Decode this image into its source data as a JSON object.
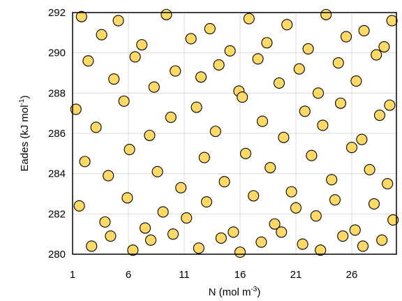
{
  "chart_data": {
    "type": "scatter",
    "title": "",
    "xlabel": {
      "base": "N (mol m",
      "sup": "-3",
      "end": ")"
    },
    "ylabel": {
      "base": "Eades (kJ mol",
      "sup": "-1",
      "end": ")"
    },
    "xlim": [
      1,
      30
    ],
    "ylim": [
      280,
      292
    ],
    "x_ticks": [
      1,
      6,
      11,
      16,
      21,
      26
    ],
    "y_ticks": [
      280,
      282,
      284,
      286,
      288,
      290,
      292
    ],
    "x_tick_labels": [
      "1",
      "6",
      "11",
      "16",
      "21",
      "26"
    ],
    "y_tick_labels": [
      "280",
      "282",
      "284",
      "286",
      "288",
      "290",
      "292"
    ],
    "grid": true,
    "legend": "none",
    "marker_color": "#FFD966",
    "marker_edge_color": "#000000",
    "series": [
      {
        "x": [
          1.8,
          3.6,
          5.1,
          7.2,
          9.4,
          11.6,
          13.3,
          15.1,
          16.8,
          18.4,
          20.2,
          22.1,
          23.7,
          25.5,
          27.1,
          28.9,
          29.6,
          2.4,
          4.7,
          6.6,
          8.3,
          10.2,
          12.5,
          14.1,
          15.9,
          17.6,
          19.5,
          21.3,
          23.0,
          24.8,
          26.4,
          28.2,
          1.3,
          3.1,
          5.6,
          7.9,
          9.8,
          12.1,
          13.8,
          16.2,
          18.0,
          19.9,
          21.8,
          23.4,
          25.0,
          26.9,
          28.5,
          29.4,
          2.1,
          4.2,
          6.1,
          8.6,
          10.7,
          12.8,
          14.6,
          16.5,
          18.7,
          20.6,
          22.4,
          24.2,
          26.0,
          27.6,
          29.2,
          1.6,
          3.9,
          5.9,
          7.5,
          9.1,
          11.2,
          13.0,
          15.4,
          17.2,
          19.1,
          21.0,
          22.8,
          24.5,
          26.3,
          28.0,
          29.7,
          2.7,
          4.4,
          6.4,
          8.0,
          10.0,
          12.3,
          14.3,
          16.0,
          17.9,
          19.7,
          21.6,
          23.2,
          25.2,
          27.0,
          28.7
        ],
        "y": [
          291.8,
          290.9,
          291.6,
          290.4,
          291.9,
          290.7,
          291.2,
          290.1,
          291.7,
          290.5,
          291.4,
          290.2,
          291.9,
          290.8,
          291.1,
          290.3,
          291.6,
          289.6,
          288.7,
          289.8,
          288.3,
          289.1,
          288.8,
          289.4,
          288.1,
          289.7,
          288.5,
          289.2,
          288.0,
          289.5,
          288.6,
          289.9,
          287.2,
          286.3,
          287.6,
          285.9,
          286.8,
          287.3,
          286.1,
          287.8,
          286.6,
          285.8,
          287.1,
          286.4,
          287.5,
          285.7,
          286.9,
          287.4,
          284.6,
          283.9,
          285.2,
          284.1,
          283.3,
          284.8,
          283.6,
          285.0,
          284.3,
          283.1,
          284.9,
          283.7,
          285.3,
          284.2,
          283.5,
          282.4,
          281.6,
          282.8,
          281.3,
          282.1,
          281.8,
          282.6,
          281.1,
          282.9,
          281.5,
          282.3,
          281.9,
          282.7,
          281.2,
          282.5,
          281.7,
          280.4,
          280.9,
          280.2,
          280.7,
          281.0,
          280.3,
          280.8,
          280.1,
          280.6,
          281.1,
          280.5,
          280.2,
          280.9,
          280.4,
          280.7
        ]
      }
    ]
  }
}
